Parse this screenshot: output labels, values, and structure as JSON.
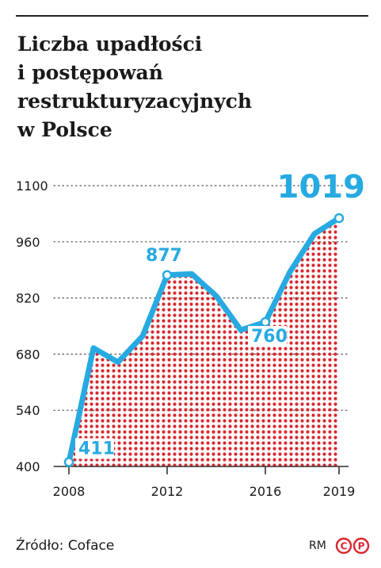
{
  "header": {
    "title_lines": [
      "Liczba upadłości",
      "i postępowań",
      "restrukturyzacyjnych",
      "w Polsce"
    ]
  },
  "chart_data": {
    "type": "area",
    "x": [
      2008,
      2009,
      2010,
      2011,
      2012,
      2013,
      2014,
      2015,
      2016,
      2017,
      2018,
      2019
    ],
    "values": [
      411,
      695,
      660,
      725,
      877,
      880,
      825,
      740,
      760,
      885,
      980,
      1019
    ],
    "ylim": [
      400,
      1100
    ],
    "yticks": [
      400,
      540,
      680,
      820,
      960,
      1100
    ],
    "xticks": [
      2008,
      2012,
      2016,
      2019
    ],
    "grid": "dotted horizontal",
    "annotations": [
      {
        "x": 2008,
        "label": "411"
      },
      {
        "x": 2012,
        "label": "877"
      },
      {
        "x": 2016,
        "label": "760"
      },
      {
        "x": 2019,
        "label": "1019"
      }
    ],
    "colors": {
      "line": "#27aae1",
      "fill": "#d7282f",
      "grid": "#555555"
    }
  },
  "footer": {
    "source": "Źródło: Coface",
    "author": "RM"
  },
  "logo": {
    "name": "cp-logo",
    "letters": [
      "C",
      "P"
    ],
    "color": "#d7282f"
  }
}
